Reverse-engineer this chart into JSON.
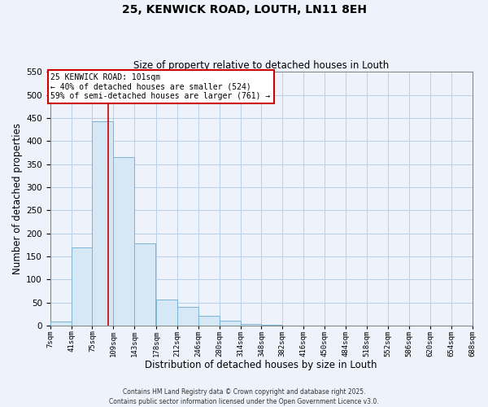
{
  "title": "25, KENWICK ROAD, LOUTH, LN11 8EH",
  "subtitle": "Size of property relative to detached houses in Louth",
  "xlabel": "Distribution of detached houses by size in Louth",
  "ylabel": "Number of detached properties",
  "bar_color": "#d6e8f5",
  "bar_edgecolor": "#7ab3d4",
  "grid_color": "#b8d0e8",
  "background_color": "#eef2fa",
  "bin_edges": [
    7,
    41,
    75,
    109,
    143,
    178,
    212,
    246,
    280,
    314,
    348,
    382,
    416,
    450,
    484,
    518,
    552,
    586,
    620,
    654,
    688
  ],
  "bar_heights": [
    8,
    170,
    443,
    365,
    178,
    57,
    40,
    22,
    10,
    3,
    1,
    0,
    0,
    0,
    0,
    0,
    0,
    0,
    0,
    0
  ],
  "property_size": 101,
  "ylim": [
    0,
    550
  ],
  "yticks": [
    0,
    50,
    100,
    150,
    200,
    250,
    300,
    350,
    400,
    450,
    500,
    550
  ],
  "vline_color": "#cc0000",
  "annotation_line1": "25 KENWICK ROAD: 101sqm",
  "annotation_line2": "← 40% of detached houses are smaller (524)",
  "annotation_line3": "59% of semi-detached houses are larger (761) →",
  "annotation_box_color": "#ffffff",
  "annotation_box_edgecolor": "#cc0000",
  "footer_line1": "Contains HM Land Registry data © Crown copyright and database right 2025.",
  "footer_line2": "Contains public sector information licensed under the Open Government Licence v3.0.",
  "tick_labels": [
    "7sqm",
    "41sqm",
    "75sqm",
    "109sqm",
    "143sqm",
    "178sqm",
    "212sqm",
    "246sqm",
    "280sqm",
    "314sqm",
    "348sqm",
    "382sqm",
    "416sqm",
    "450sqm",
    "484sqm",
    "518sqm",
    "552sqm",
    "586sqm",
    "620sqm",
    "654sqm",
    "688sqm"
  ]
}
